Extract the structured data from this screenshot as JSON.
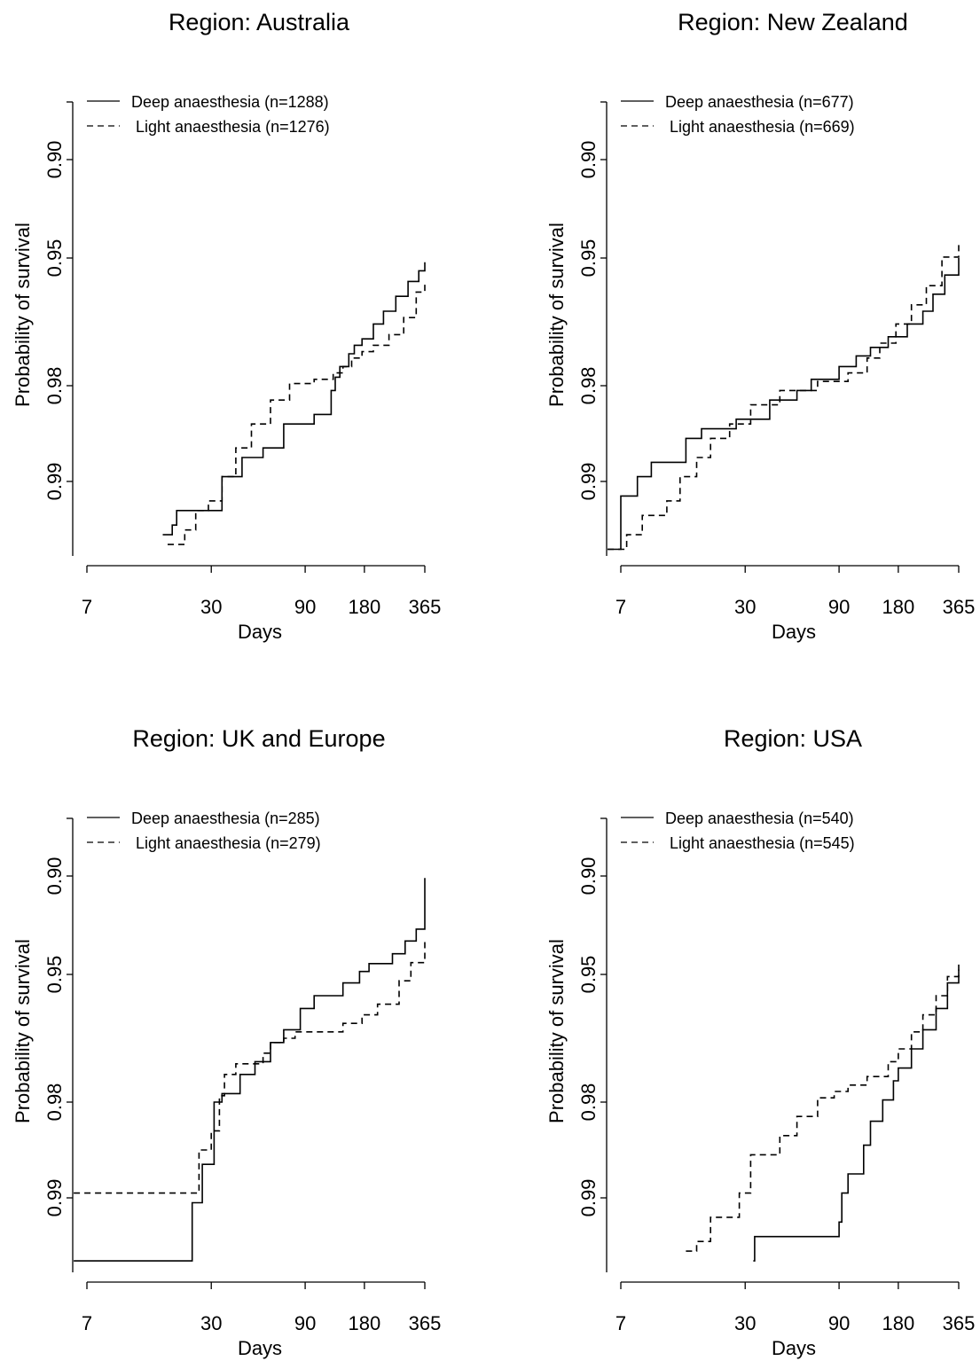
{
  "chart_data": [
    {
      "type": "line",
      "title": "Region: Australia",
      "xlabel": "Days",
      "ylabel": "Probability of survival",
      "x_scale": "log",
      "x_ticks": [
        7,
        30,
        90,
        180,
        365
      ],
      "y_ticks": [
        0.9,
        0.95,
        0.98,
        0.99
      ],
      "y_tick_labels": [
        "0.90",
        "0.95",
        "0.98",
        "0.99"
      ],
      "y_scale": "transformed (0.95 at the middle gap)",
      "grid": false,
      "legend_position": "top-left",
      "series": [
        {
          "name": "Deep anaesthesia (n=1288)",
          "linestyle": "solid",
          "x": [
            17,
            19,
            20,
            30,
            34,
            43,
            55,
            70,
            100,
            122,
            128,
            135,
            150,
            160,
            175,
            200,
            225,
            260,
            300,
            340,
            365
          ],
          "y": [
            0.9955,
            0.9945,
            0.993,
            0.993,
            0.9895,
            0.9875,
            0.9865,
            0.984,
            0.983,
            0.9805,
            0.978,
            0.9755,
            0.9725,
            0.9705,
            0.969,
            0.9655,
            0.9625,
            0.959,
            0.9555,
            0.953,
            0.951
          ]
        },
        {
          "name": "Light anaesthesia (n=1276)",
          "linestyle": "dashed",
          "x": [
            18,
            22,
            25,
            29,
            34,
            40,
            48,
            60,
            75,
            100,
            125,
            140,
            155,
            175,
            200,
            240,
            285,
            330,
            365
          ],
          "y": [
            0.9965,
            0.995,
            0.993,
            0.992,
            0.9895,
            0.9865,
            0.984,
            0.9815,
            0.9795,
            0.9785,
            0.977,
            0.9755,
            0.9735,
            0.972,
            0.9705,
            0.968,
            0.964,
            0.958,
            0.9555
          ]
        }
      ]
    },
    {
      "type": "line",
      "title": "Region: New Zealand",
      "xlabel": "Days",
      "ylabel": "Probability of survival",
      "x_scale": "log",
      "x_ticks": [
        7,
        30,
        90,
        180,
        365
      ],
      "y_ticks": [
        0.9,
        0.95,
        0.98,
        0.99
      ],
      "y_tick_labels": [
        "0.90",
        "0.95",
        "0.98",
        "0.99"
      ],
      "y_scale": "transformed (0.95 at the middle gap)",
      "grid": false,
      "legend_position": "top-left",
      "series": [
        {
          "name": "Deep anaesthesia (n=677)",
          "linestyle": "solid",
          "x": [
            6,
            7,
            8.5,
            10,
            15,
            18,
            27,
            40,
            55,
            65,
            90,
            110,
            130,
            160,
            200,
            240,
            270,
            310,
            365
          ],
          "y": [
            0.997,
            0.9915,
            0.9895,
            0.988,
            0.9855,
            0.9845,
            0.9835,
            0.9815,
            0.9805,
            0.9785,
            0.9755,
            0.973,
            0.971,
            0.9685,
            0.9655,
            0.9625,
            0.9585,
            0.954,
            0.95
          ]
        },
        {
          "name": "Light anaesthesia (n=669)",
          "linestyle": "dashed",
          "x": [
            6,
            7.5,
            9,
            12,
            14,
            17,
            20,
            25,
            32,
            45,
            70,
            100,
            125,
            145,
            175,
            210,
            250,
            300,
            365
          ],
          "y": [
            0.997,
            0.9955,
            0.9935,
            0.992,
            0.9895,
            0.9875,
            0.9855,
            0.984,
            0.982,
            0.9805,
            0.979,
            0.977,
            0.9735,
            0.97,
            0.9655,
            0.961,
            0.9565,
            0.9495,
            0.943
          ]
        }
      ]
    },
    {
      "type": "line",
      "title": "Region: UK and Europe",
      "xlabel": "Days",
      "ylabel": "Probability of survival",
      "x_scale": "log",
      "x_ticks": [
        7,
        30,
        90,
        180,
        365
      ],
      "y_ticks": [
        0.9,
        0.95,
        0.98,
        0.99
      ],
      "y_tick_labels": [
        "0.90",
        "0.95",
        "0.98",
        "0.99"
      ],
      "y_scale": "transformed (0.95 at the middle gap)",
      "grid": false,
      "legend_position": "top-left",
      "series": [
        {
          "name": "Deep anaesthesia (n=285)",
          "linestyle": "solid",
          "x": [
            6,
            22,
            24,
            27,
            31,
            34,
            42,
            50,
            60,
            70,
            85,
            100,
            140,
            170,
            190,
            250,
            290,
            330,
            365
          ],
          "y": [
            0.9965,
            0.9965,
            0.9905,
            0.9865,
            0.98,
            0.978,
            0.9735,
            0.9705,
            0.966,
            0.963,
            0.958,
            0.955,
            0.952,
            0.9485,
            0.9445,
            0.9395,
            0.933,
            0.927,
            0.901
          ]
        },
        {
          "name": "Light anaesthesia (n=279)",
          "linestyle": "dashed",
          "x": [
            6,
            20,
            26,
            30,
            33,
            35,
            40,
            55,
            60,
            70,
            80,
            120,
            140,
            175,
            210,
            270,
            310,
            365
          ],
          "y": [
            0.9895,
            0.9895,
            0.985,
            0.983,
            0.9785,
            0.9735,
            0.971,
            0.9685,
            0.966,
            0.965,
            0.9635,
            0.9635,
            0.9615,
            0.9595,
            0.957,
            0.9515,
            0.944,
            0.9335
          ]
        }
      ]
    },
    {
      "type": "line",
      "title": "Region: USA",
      "xlabel": "Days",
      "ylabel": "Probability of survival",
      "x_scale": "log",
      "x_ticks": [
        7,
        30,
        90,
        180,
        365
      ],
      "y_ticks": [
        0.9,
        0.95,
        0.98,
        0.99
      ],
      "y_tick_labels": [
        "0.90",
        "0.95",
        "0.98",
        "0.99"
      ],
      "y_scale": "transformed (0.95 at the middle gap)",
      "grid": false,
      "legend_position": "top-left",
      "series": [
        {
          "name": "Deep anaesthesia (n=540)",
          "linestyle": "solid",
          "x": [
            33,
            33.5,
            89,
            90,
            93,
            100,
            120,
            130,
            150,
            170,
            180,
            210,
            240,
            280,
            320,
            365
          ],
          "y": [
            0.9965,
            0.994,
            0.994,
            0.9925,
            0.9895,
            0.9875,
            0.9845,
            0.982,
            0.9795,
            0.975,
            0.972,
            0.9675,
            0.963,
            0.958,
            0.952,
            0.945
          ]
        },
        {
          "name": "Light anaesthesia (n=545)",
          "linestyle": "dashed",
          "x": [
            15,
            17,
            20,
            28,
            32,
            45,
            55,
            70,
            85,
            100,
            125,
            160,
            180,
            210,
            240,
            280,
            320,
            365
          ],
          "y": [
            0.9955,
            0.9945,
            0.992,
            0.9895,
            0.9855,
            0.9835,
            0.9815,
            0.979,
            0.9775,
            0.976,
            0.974,
            0.9705,
            0.9675,
            0.9635,
            0.9595,
            0.955,
            0.9505,
            0.9475
          ]
        }
      ]
    }
  ]
}
